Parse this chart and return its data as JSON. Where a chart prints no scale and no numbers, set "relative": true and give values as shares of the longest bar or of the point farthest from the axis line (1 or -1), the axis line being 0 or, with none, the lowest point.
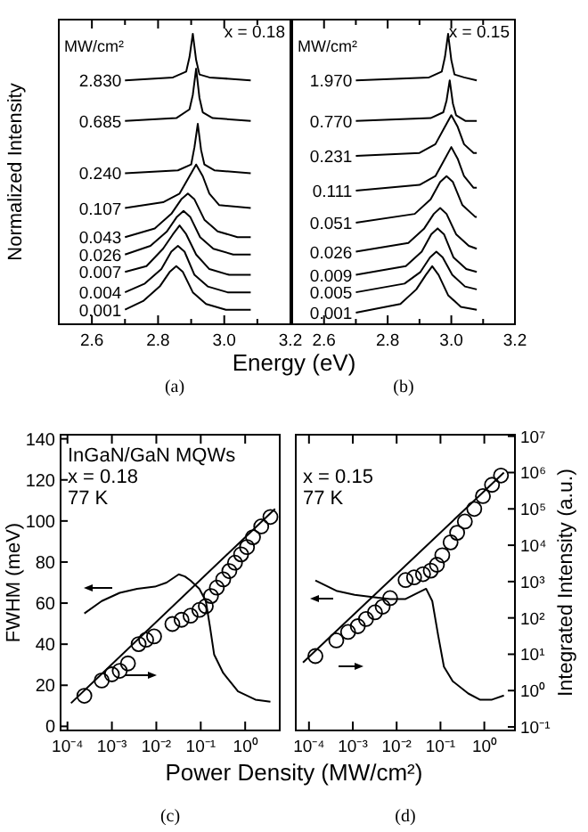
{
  "chart_data": [
    {
      "type": "line",
      "relative": true,
      "xlabel": "Energy (eV)",
      "ylabel": "Normalized Intensity",
      "legend_title": "MW/cm²",
      "annotations": [
        "x = 0.18",
        "(a)"
      ],
      "tick_labels": "x",
      "xlim": [
        2.5,
        3.2
      ],
      "xticks": [
        2.6,
        {
          "value": 2.7,
          "label": null
        },
        2.8,
        {
          "value": 2.9,
          "label": null
        },
        {
          "value": 3,
          "label": "3.0"
        },
        {
          "value": 3.1,
          "label": null
        },
        3.2
      ],
      "series": [
        {
          "name": "2.830",
          "color": "#000000",
          "x": [
            2.7,
            2.845,
            2.885,
            2.895,
            2.905,
            2.915,
            2.925,
            2.955,
            3.08
          ],
          "values": [
            0.84,
            0.85,
            0.87,
            0.92,
            1,
            0.91,
            0.86,
            0.85,
            0.84
          ]
        },
        {
          "name": "0.685",
          "color": "#000000",
          "x": [
            2.7,
            2.855,
            2.895,
            2.905,
            2.915,
            2.925,
            2.935,
            2.965,
            3.08
          ],
          "values": [
            0.7,
            0.71,
            0.74,
            0.79,
            0.88,
            0.78,
            0.73,
            0.71,
            0.7
          ]
        },
        {
          "name": "0.240",
          "color": "#000000",
          "x": [
            2.7,
            2.86,
            2.9,
            2.91,
            2.92,
            2.93,
            2.94,
            2.97,
            3.08
          ],
          "values": [
            0.52,
            0.53,
            0.55,
            0.61,
            0.69,
            0.6,
            0.55,
            0.53,
            0.52
          ]
        },
        {
          "name": "0.107",
          "color": "#000000",
          "x": [
            2.7,
            2.815,
            2.865,
            2.89,
            2.915,
            2.935,
            2.955,
            2.985,
            3.08
          ],
          "values": [
            0.4,
            0.42,
            0.45,
            0.5,
            0.55,
            0.51,
            0.45,
            0.41,
            0.4
          ]
        },
        {
          "name": "0.043",
          "color": "#000000",
          "x": [
            2.7,
            2.79,
            2.84,
            2.87,
            2.89,
            2.91,
            2.94,
            2.98,
            3.04,
            3.08
          ],
          "values": [
            0.3,
            0.33,
            0.38,
            0.43,
            0.45,
            0.43,
            0.36,
            0.32,
            0.3,
            0.3
          ]
        },
        {
          "name": "0.026",
          "color": "#000000",
          "x": [
            2.7,
            2.777,
            2.827,
            2.857,
            2.877,
            2.897,
            2.927,
            2.967,
            3.027,
            3.08
          ],
          "values": [
            0.24,
            0.27,
            0.32,
            0.37,
            0.39,
            0.37,
            0.3,
            0.26,
            0.24,
            0.24
          ]
        },
        {
          "name": "0.007",
          "color": "#000000",
          "x": [
            2.7,
            2.765,
            2.815,
            2.845,
            2.865,
            2.885,
            2.915,
            2.955,
            3.015,
            3.08
          ],
          "values": [
            0.18,
            0.2,
            0.26,
            0.31,
            0.34,
            0.31,
            0.24,
            0.19,
            0.17,
            0.17
          ]
        },
        {
          "name": "0.004",
          "color": "#000000",
          "x": [
            2.7,
            2.76,
            2.81,
            2.84,
            2.86,
            2.88,
            2.91,
            2.95,
            3.01,
            3.08
          ],
          "values": [
            0.11,
            0.14,
            0.19,
            0.25,
            0.27,
            0.25,
            0.17,
            0.13,
            0.11,
            0.11
          ]
        },
        {
          "name": "0.001",
          "color": "#000000",
          "x": [
            2.7,
            2.755,
            2.805,
            2.835,
            2.855,
            2.875,
            2.905,
            2.945,
            3.005,
            3.08
          ],
          "values": [
            0.05,
            0.08,
            0.13,
            0.18,
            0.2,
            0.18,
            0.11,
            0.07,
            0.05,
            0.05
          ]
        }
      ]
    },
    {
      "type": "line",
      "relative": true,
      "legend_title": "MW/cm²",
      "annotations": [
        "x = 0.15",
        "(b)"
      ],
      "tick_labels": "x",
      "xlim": [
        2.5,
        3.2
      ],
      "xticks": [
        2.6,
        {
          "value": 2.7,
          "label": null
        },
        2.8,
        {
          "value": 2.9,
          "label": null
        },
        {
          "value": 3,
          "label": "3.0"
        },
        {
          "value": 3.1,
          "label": null
        },
        3.2
      ],
      "series": [
        {
          "name": "1.970",
          "color": "#000000",
          "x": [
            2.7,
            2.93,
            2.97,
            2.98,
            2.99,
            3,
            3.01,
            3.04,
            3.08
          ],
          "values": [
            0.84,
            0.85,
            0.87,
            0.92,
            1,
            0.91,
            0.86,
            0.85,
            0.84
          ]
        },
        {
          "name": "0.770",
          "color": "#000000",
          "x": [
            2.7,
            2.935,
            2.975,
            2.985,
            2.995,
            3.005,
            3.015,
            3.045,
            3.08
          ],
          "values": [
            0.7,
            0.71,
            0.73,
            0.77,
            0.84,
            0.76,
            0.72,
            0.7,
            0.7
          ]
        },
        {
          "name": "0.231",
          "color": "#000000",
          "x": [
            2.7,
            2.9,
            2.95,
            2.975,
            3,
            3.02,
            3.04,
            3.07,
            3.08
          ],
          "values": [
            0.58,
            0.59,
            0.62,
            0.67,
            0.72,
            0.68,
            0.62,
            0.59,
            0.59
          ]
        },
        {
          "name": "0.111",
          "color": "#000000",
          "x": [
            2.7,
            2.9,
            2.95,
            2.975,
            3,
            3.02,
            3.04,
            3.07,
            3.08
          ],
          "values": [
            0.46,
            0.48,
            0.51,
            0.56,
            0.61,
            0.57,
            0.51,
            0.47,
            0.47
          ]
        },
        {
          "name": "0.051",
          "color": "#000000",
          "x": [
            2.7,
            2.885,
            2.935,
            2.965,
            2.985,
            3.005,
            3.035,
            3.075,
            3.08
          ],
          "values": [
            0.35,
            0.38,
            0.43,
            0.49,
            0.51,
            0.49,
            0.41,
            0.37,
            0.37
          ]
        },
        {
          "name": "0.026",
          "color": "#000000",
          "x": [
            2.7,
            2.865,
            2.915,
            2.945,
            2.965,
            2.985,
            3.015,
            3.055,
            3.08
          ],
          "values": [
            0.25,
            0.28,
            0.33,
            0.38,
            0.4,
            0.38,
            0.31,
            0.27,
            0.26
          ]
        },
        {
          "name": "0.009",
          "color": "#000000",
          "x": [
            2.7,
            2.857,
            2.907,
            2.937,
            2.957,
            2.977,
            3.007,
            3.047,
            3.08
          ],
          "values": [
            0.17,
            0.2,
            0.25,
            0.31,
            0.33,
            0.31,
            0.23,
            0.19,
            0.18
          ]
        },
        {
          "name": "0.005",
          "color": "#000000",
          "x": [
            2.7,
            2.853,
            2.903,
            2.933,
            2.953,
            2.973,
            3.003,
            3.043,
            3.08
          ],
          "values": [
            0.11,
            0.14,
            0.18,
            0.23,
            0.25,
            0.23,
            0.17,
            0.13,
            0.12
          ]
        },
        {
          "name": "0.001",
          "color": "#000000",
          "x": [
            2.7,
            2.84,
            2.89,
            2.92,
            2.94,
            2.96,
            2.99,
            3.03,
            3.08
          ],
          "values": [
            0.04,
            0.07,
            0.12,
            0.17,
            0.2,
            0.17,
            0.1,
            0.06,
            0.05
          ]
        }
      ]
    },
    {
      "type": "scatter",
      "log": "xy",
      "xlabel": "Power Density (MW/cm²)",
      "y2label": "FWHM (meV)",
      "annotations": [
        "InGaN/GaN MQWs",
        "x = 0.18",
        "77 K",
        "(c)"
      ],
      "xlim": [
        7e-05,
        6
      ],
      "xticks": [
        {
          "value": 0.0001,
          "label": "10⁻⁴"
        },
        {
          "value": 0.001,
          "label": "10⁻³"
        },
        {
          "value": 0.01,
          "label": "10⁻²"
        },
        {
          "value": 0.1,
          "label": "10⁻¹"
        },
        {
          "value": 1,
          "label": "10⁰"
        }
      ],
      "ylim": [
        0.08,
        11000000
      ],
      "y2lim": [
        -2,
        142
      ],
      "y2ticks": [
        0,
        20,
        40,
        60,
        80,
        100,
        120,
        140
      ],
      "series": [
        {
          "type": "line",
          "axis": "y2",
          "color": "#000000",
          "x": [
            0.00024,
            0.00059,
            0.0015,
            0.0037,
            0.0093,
            0.017,
            0.032,
            0.044,
            0.059,
            0.093,
            0.13,
            0.16,
            0.2,
            0.32,
            0.69,
            1.7,
            3.7
          ],
          "values": [
            55,
            61,
            65,
            67,
            68,
            70,
            74,
            73,
            71,
            67,
            61,
            49,
            35,
            26,
            17,
            13,
            12
          ]
        },
        {
          "type": "line",
          "color": "#000000",
          "x": [
            0.00012,
            4.7
          ],
          "values": [
            0.45,
            100000
          ]
        },
        {
          "marker": "circle",
          "color": "#000000",
          "x": [
            0.00024,
            0.00059,
            0.001,
            0.0015,
            0.0023,
            0.004,
            0.0059,
            0.0089,
            0.023,
            0.037,
            0.059,
            0.093,
            0.13,
            0.17,
            0.23,
            0.32,
            0.44,
            0.59,
            0.81,
            1.1,
            1.5,
            2.3,
            3.7
          ],
          "values": [
            0.72,
            1.9,
            2.8,
            3.5,
            5.6,
            19,
            25,
            31,
            68,
            89,
            115,
            166,
            210,
            400,
            680,
            1150,
            1950,
            3300,
            5600,
            8900,
            16600,
            33000,
            60000
          ]
        }
      ]
    },
    {
      "type": "scatter",
      "log": "xy",
      "ylabel": "Integrated Intensity (a.u.)",
      "annotations": [
        "x = 0.15",
        "77 K",
        "(d)"
      ],
      "xlim": [
        5e-05,
        5
      ],
      "xticks": [
        {
          "value": 0.0001,
          "label": "10⁻⁴"
        },
        {
          "value": 0.001,
          "label": "10⁻³"
        },
        {
          "value": 0.01,
          "label": "10⁻²"
        },
        {
          "value": 0.1,
          "label": "10⁻¹"
        },
        {
          "value": 1,
          "label": "10⁰"
        }
      ],
      "ylim": [
        0.08,
        11000000
      ],
      "yticks": [
        {
          "value": 0.1,
          "label": "10⁻¹"
        },
        {
          "value": 1,
          "label": "10⁰"
        },
        {
          "value": 10,
          "label": "10¹"
        },
        {
          "value": 100,
          "label": "10²"
        },
        {
          "value": 1000,
          "label": "10³"
        },
        {
          "value": 10000,
          "label": "10⁴"
        },
        {
          "value": 100000,
          "label": "10⁵"
        },
        {
          "value": 1000000,
          "label": "10⁶"
        },
        {
          "value": 10000000,
          "label": "10⁷"
        }
      ],
      "y2lim": [
        -2,
        142
      ],
      "series": [
        {
          "type": "line",
          "axis": "y2",
          "color": "#000000",
          "x": [
            0.00014,
            0.00042,
            0.0011,
            0.0028,
            0.0071,
            0.016,
            0.03,
            0.047,
            0.065,
            0.089,
            0.12,
            0.19,
            0.43,
            0.79,
            1.5,
            2.8
          ],
          "values": [
            71,
            66,
            64,
            63,
            62,
            62,
            65,
            67,
            61,
            44,
            29,
            22,
            16,
            13,
            13,
            15
          ]
        },
        {
          "type": "line",
          "color": "#000000",
          "x": [
            7.3e-05,
            2.8
          ],
          "values": [
            5.9,
            1000000
          ]
        },
        {
          "marker": "circle",
          "color": "#000000",
          "x": [
            0.00014,
            0.00042,
            0.00078,
            0.0013,
            0.002,
            0.0032,
            0.0048,
            0.0071,
            0.016,
            0.025,
            0.04,
            0.06,
            0.083,
            0.11,
            0.17,
            0.24,
            0.36,
            0.59,
            0.93,
            1.5,
            2.4
          ],
          "values": [
            8.9,
            24,
            41,
            59,
            93,
            142,
            204,
            350,
            1100,
            1300,
            1600,
            2000,
            2900,
            5300,
            12000,
            22000,
            45000,
            100000,
            225000,
            460000,
            830000
          ]
        }
      ]
    }
  ]
}
